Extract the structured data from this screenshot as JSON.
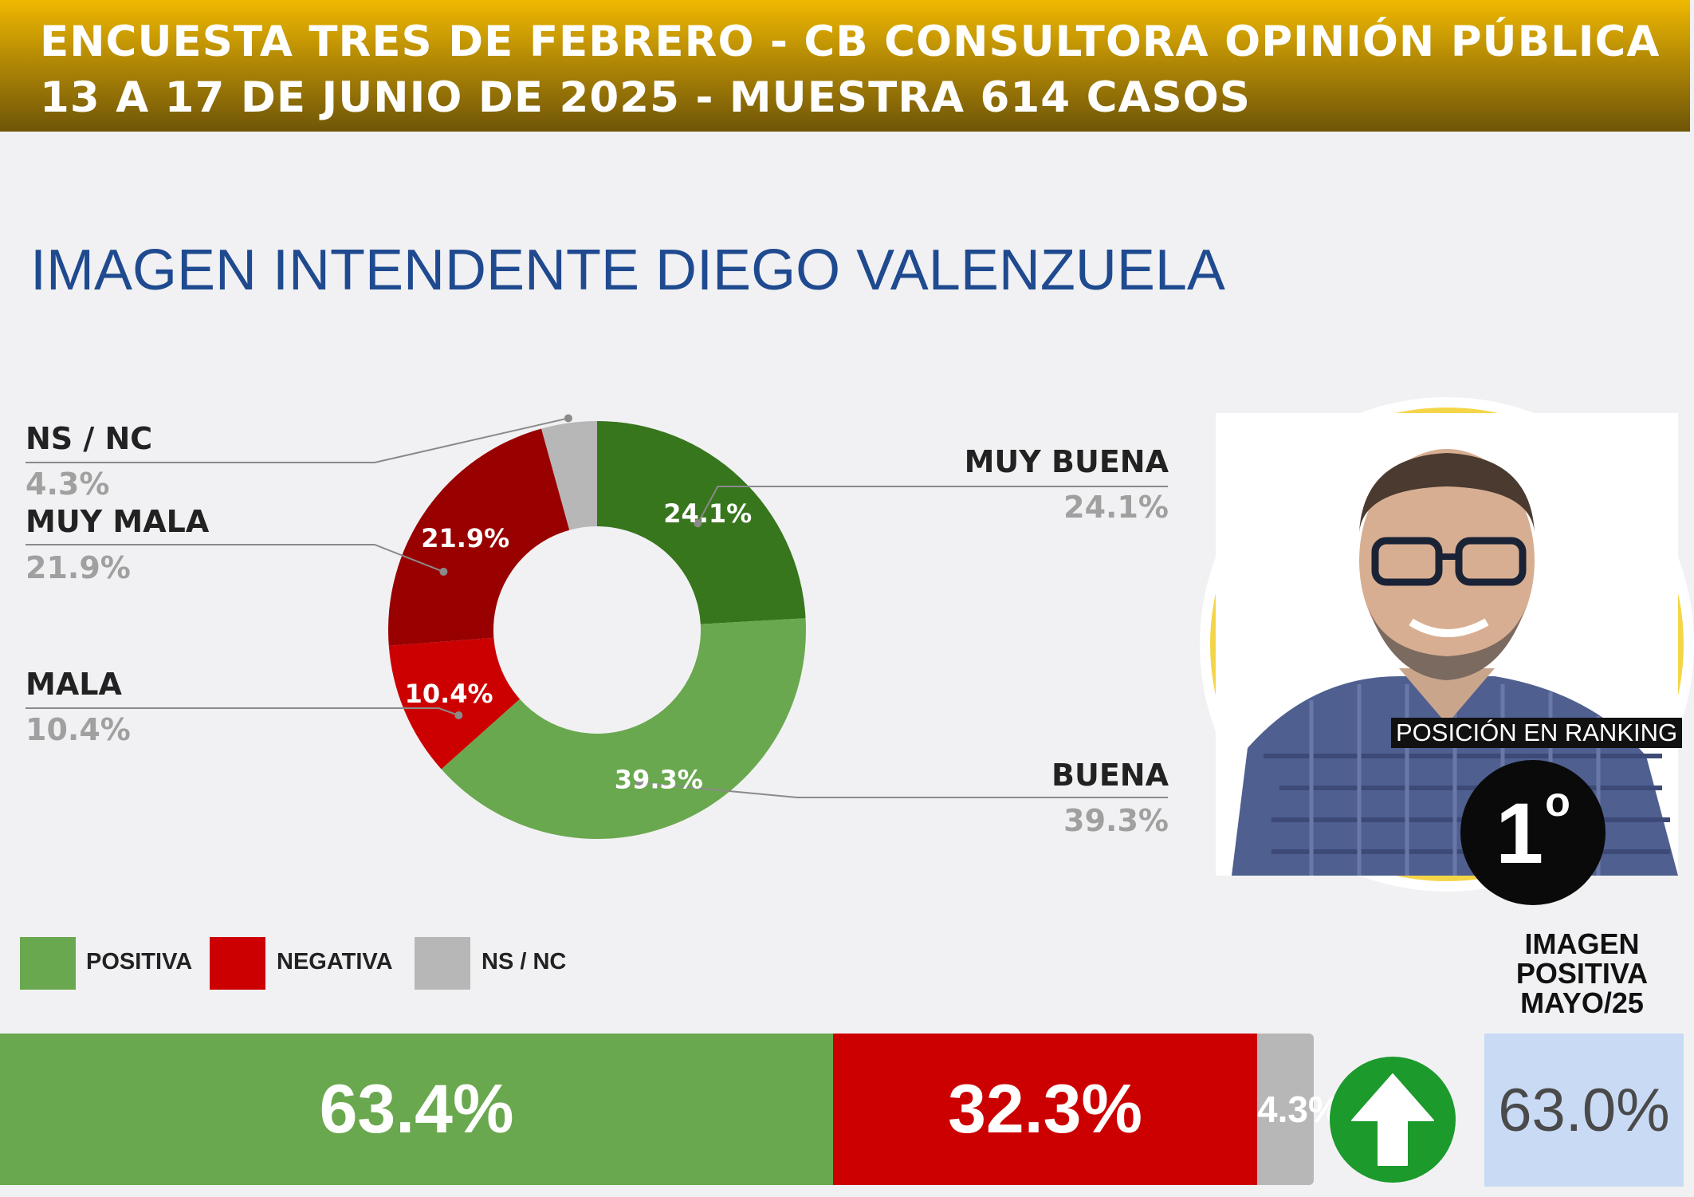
{
  "header": {
    "line1": "ENCUESTA TRES DE FEBRERO - CB CONSULTORA OPINIÓN PÚBLICA",
    "line2": "13 A 17 DE JUNIO DE 2025 - MUESTRA 614 CASOS"
  },
  "colors": {
    "muy_buena": "#38761d",
    "buena": "#6aa84f",
    "mala": "#cc0000",
    "muy_mala": "#990000",
    "ns_nc": "#b7b7b7",
    "positiva": "#6aa84f",
    "negativa": "#cc0000",
    "title": "#1f4a8f"
  },
  "chart_data": [
    {
      "type": "pie",
      "variant": "donut",
      "title": "IMAGEN INTENDENTE  DIEGO VALENZUELA",
      "slices": [
        {
          "label": "MUY BUENA",
          "value": 24.1,
          "display": "24.1%"
        },
        {
          "label": "BUENA",
          "value": 39.3,
          "display": "39.3%"
        },
        {
          "label": "MALA",
          "value": 10.4,
          "display": "10.4%"
        },
        {
          "label": "MUY MALA",
          "value": 21.9,
          "display": "21.9%"
        },
        {
          "label": "NS / NC",
          "value": 4.3,
          "display": "4.3%"
        }
      ]
    },
    {
      "type": "bar",
      "orientation": "horizontal-stacked",
      "legend": [
        "POSITIVA",
        "NEGATIVA",
        "NS / NC"
      ],
      "series": [
        {
          "name": "POSITIVA",
          "value": 63.4,
          "display": "63.4%"
        },
        {
          "name": "NEGATIVA",
          "value": 32.3,
          "display": "32.3%"
        },
        {
          "name": "NS / NC",
          "value": 4.3,
          "display": "4.3%"
        }
      ]
    }
  ],
  "ranking": {
    "caption": "POSICIÓN EN RANKING",
    "position": "1",
    "suffix": "o"
  },
  "previous": {
    "label": "IMAGEN POSITIVA MAYO/25",
    "value": "63.0%",
    "trend_icon": "arrow-up-icon"
  }
}
